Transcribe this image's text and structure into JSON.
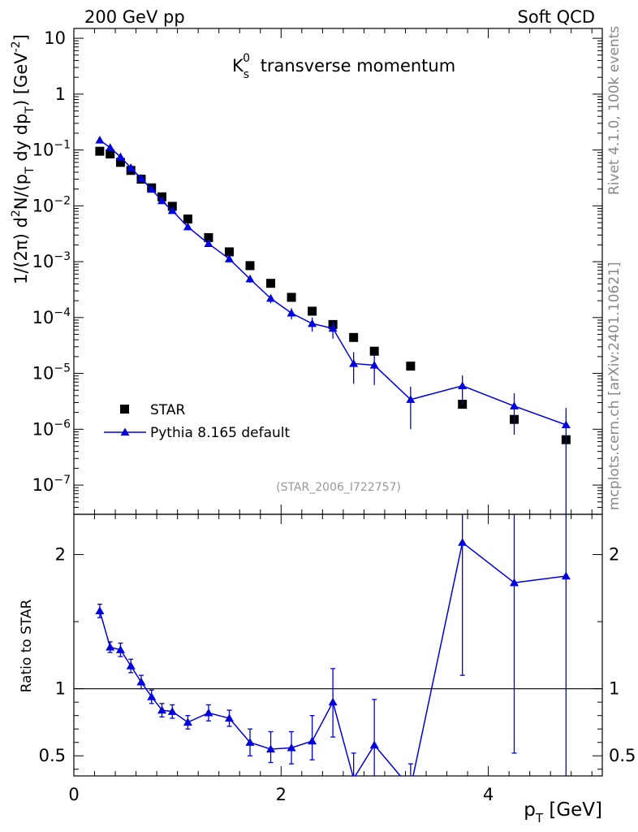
{
  "header": {
    "left": "200 GeV pp",
    "right": "Soft QCD"
  },
  "side_labels": {
    "rivet": "Rivet 4.1.0,  100k events",
    "mcplots": "mcplots.cern.ch [arXiv:2401.10621]"
  },
  "colors": {
    "data": "#000000",
    "mc": "#0000dd",
    "watermark": "#999999"
  },
  "chart_data": [
    {
      "type": "scatter",
      "panel": "main",
      "title": "K transverse momentum",
      "title_main": "K",
      "title_sub": "s",
      "title_sup": "0",
      "title_rest": "transverse momentum",
      "watermark": "(STAR_2006_I722757)",
      "ylabel": "1/(2π)  d²N/(p_T dy dp_T) [GeV⁻²]",
      "ylabel_parts": {
        "a": "1/(2π)",
        "b": "d",
        "b_sup": "2",
        "c": "N/(p",
        "c_sub": "T",
        "d": " dy dp",
        "d_sub": "T",
        "e": ") [GeV",
        "e_sup": "-2",
        "f": "]"
      },
      "yscale": "log",
      "ylim": [
        3e-08,
        15
      ],
      "xlim": [
        0,
        5.1
      ],
      "y_ticks": [
        {
          "value": 10,
          "label": "10"
        },
        {
          "value": 1,
          "label": "1"
        },
        {
          "value": 0.1,
          "base": "10",
          "exp": "−1"
        },
        {
          "value": 0.01,
          "base": "10",
          "exp": "−2"
        },
        {
          "value": 0.001,
          "base": "10",
          "exp": "−3"
        },
        {
          "value": 0.0001,
          "base": "10",
          "exp": "−4"
        },
        {
          "value": 1e-05,
          "base": "10",
          "exp": "−5"
        },
        {
          "value": 1e-06,
          "base": "10",
          "exp": "−6"
        },
        {
          "value": 1e-07,
          "base": "10",
          "exp": "−7"
        }
      ],
      "legend": [
        {
          "label": "STAR",
          "marker": "square",
          "color": "#000000"
        },
        {
          "label": "Pythia 8.165 default",
          "marker": "triangle",
          "color": "#0000dd"
        }
      ],
      "legend_position": "bottom-left",
      "series": [
        {
          "name": "STAR",
          "marker": "square",
          "line": false,
          "color": "#000000",
          "x": [
            0.25,
            0.35,
            0.45,
            0.55,
            0.65,
            0.75,
            0.85,
            0.95,
            1.1,
            1.3,
            1.5,
            1.7,
            1.9,
            2.1,
            2.3,
            2.5,
            2.7,
            2.9,
            3.25,
            3.75,
            4.25,
            4.75
          ],
          "y": [
            0.095,
            0.085,
            0.06,
            0.043,
            0.03,
            0.021,
            0.0145,
            0.0098,
            0.0058,
            0.0027,
            0.0015,
            0.00085,
            0.00041,
            0.00023,
            0.00013,
            7.5e-05,
            4.4e-05,
            2.5e-05,
            1.35e-05,
            2.8e-06,
            1.5e-06,
            6.5e-07
          ]
        },
        {
          "name": "Pythia 8.165 default",
          "marker": "triangle",
          "line": true,
          "color": "#0000dd",
          "x": [
            0.25,
            0.35,
            0.45,
            0.55,
            0.65,
            0.75,
            0.85,
            0.95,
            1.1,
            1.3,
            1.5,
            1.7,
            1.9,
            2.1,
            2.3,
            2.5,
            2.7,
            2.9,
            3.25,
            3.75,
            4.25,
            4.75
          ],
          "y": [
            0.15,
            0.11,
            0.075,
            0.048,
            0.031,
            0.0198,
            0.0123,
            0.0082,
            0.0042,
            0.0021,
            0.00112,
            0.00049,
            0.00022,
            0.00012,
            7.8e-05,
            6.4e-05,
            1.5e-05,
            1.4e-05,
            3.4e-06,
            6e-06,
            2.6e-06,
            1.2e-06
          ],
          "y_low": [
            0.143,
            0.105,
            0.071,
            0.0455,
            0.0294,
            0.0187,
            0.0116,
            0.0077,
            0.0039,
            0.00192,
            0.00101,
            0.00042,
            0.00018,
            9.3e-05,
            5.6e-05,
            4.2e-05,
            6.5e-06,
            6.2e-06,
            1e-06,
            2.8e-06,
            8e-07,
            3e-08
          ],
          "y_high": [
            0.157,
            0.115,
            0.079,
            0.0505,
            0.0326,
            0.0209,
            0.013,
            0.0087,
            0.0045,
            0.0023,
            0.00123,
            0.00056,
            0.00026,
            0.000147,
            0.0001,
            8.6e-05,
            2.4e-05,
            2.2e-05,
            5.8e-06,
            9.2e-06,
            4.4e-06,
            2.4e-06
          ]
        }
      ]
    },
    {
      "type": "line",
      "panel": "ratio",
      "ylabel": "Ratio to STAR",
      "xlabel": "p_T [GeV]",
      "xlabel_parts": {
        "a": "p",
        "a_sub": "T",
        "b": " [GeV]"
      },
      "xlim": [
        0,
        5.1
      ],
      "ylim": [
        0.35,
        2.3
      ],
      "x_ticks": [
        {
          "value": 0,
          "label": "0"
        },
        {
          "value": 2,
          "label": "2"
        },
        {
          "value": 4,
          "label": "4"
        }
      ],
      "y_ticks": [
        {
          "value": 0.5,
          "label": "0.5"
        },
        {
          "value": 1,
          "label": "1"
        },
        {
          "value": 2,
          "label": "2"
        }
      ],
      "reference_line": 1,
      "series": [
        {
          "name": "Pythia 8.165 default / STAR",
          "marker": "triangle",
          "color": "#0000dd",
          "x": [
            0.25,
            0.35,
            0.45,
            0.55,
            0.65,
            0.75,
            0.85,
            0.95,
            1.1,
            1.3,
            1.5,
            1.7,
            1.9,
            2.1,
            2.3,
            2.5,
            2.7,
            2.9,
            3.25,
            3.75,
            4.25,
            4.75
          ],
          "y": [
            1.58,
            1.31,
            1.29,
            1.17,
            1.05,
            0.94,
            0.84,
            0.83,
            0.75,
            0.82,
            0.78,
            0.6,
            0.55,
            0.56,
            0.61,
            0.9,
            0.33,
            0.58,
            0.26,
            2.09,
            1.79,
            1.84
          ],
          "y_low": [
            1.53,
            1.27,
            1.24,
            1.12,
            1.0,
            0.89,
            0.79,
            0.78,
            0.7,
            0.76,
            0.72,
            0.5,
            0.45,
            0.44,
            0.47,
            0.64,
            0.14,
            0.25,
            0.08,
            1.1,
            0.52,
            0.0
          ],
          "y_high": [
            1.63,
            1.35,
            1.34,
            1.22,
            1.1,
            0.99,
            0.89,
            0.88,
            0.8,
            0.88,
            0.84,
            0.7,
            0.68,
            0.68,
            0.8,
            1.15,
            0.52,
            0.92,
            0.44,
            3.0,
            3.0,
            3.0
          ]
        }
      ]
    }
  ]
}
